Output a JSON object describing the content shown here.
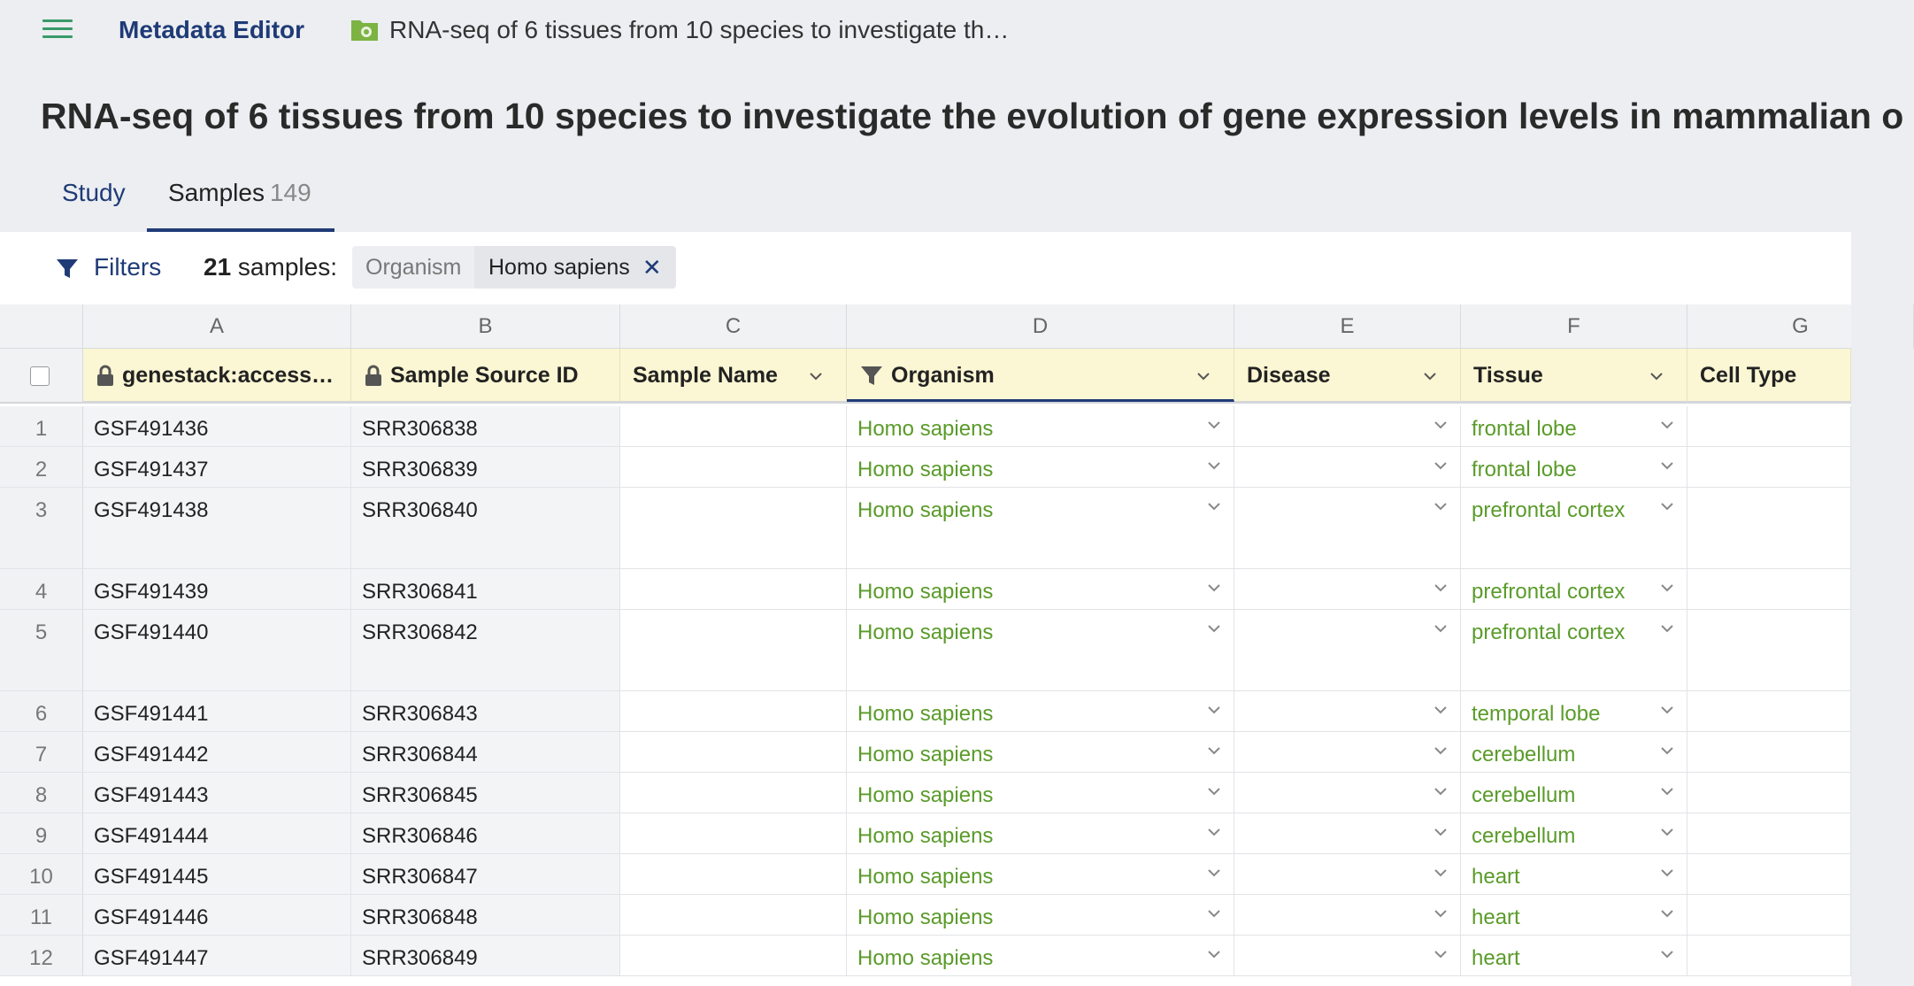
{
  "app": {
    "title": "Metadata Editor",
    "breadcrumb": "RNA-seq of 6 tissues from 10 species to investigate th…"
  },
  "page_title": "RNA-seq of 6 tissues from 10 species to investigate the evolution of gene expression levels in mammalian o",
  "tabs": [
    {
      "label": "Study"
    },
    {
      "label": "Samples",
      "count": "149"
    }
  ],
  "filterbar": {
    "filters_label": "Filters",
    "count": "21",
    "count_suffix": " samples:",
    "chip_key": "Organism",
    "chip_value": "Homo sapiens",
    "chip_close": "✕"
  },
  "columns": {
    "letters": [
      "A",
      "B",
      "C",
      "D",
      "E",
      "F",
      "G"
    ],
    "headers": [
      "genestack:access…",
      "Sample Source ID",
      "Sample Name",
      "Organism",
      "Disease",
      "Tissue",
      "Cell Type"
    ]
  },
  "rows": [
    {
      "n": "1",
      "acc": "GSF491436",
      "src": "SRR306838",
      "org": "Homo sapiens",
      "tissue": "frontal lobe"
    },
    {
      "n": "2",
      "acc": "GSF491437",
      "src": "SRR306839",
      "org": "Homo sapiens",
      "tissue": "frontal lobe"
    },
    {
      "n": "3",
      "acc": "GSF491438",
      "src": "SRR306840",
      "org": "Homo sapiens",
      "tissue": "prefrontal cortex"
    },
    {
      "n": "4",
      "acc": "GSF491439",
      "src": "SRR306841",
      "org": "Homo sapiens",
      "tissue": "prefrontal cortex"
    },
    {
      "n": "5",
      "acc": "GSF491440",
      "src": "SRR306842",
      "org": "Homo sapiens",
      "tissue": "prefrontal cortex"
    },
    {
      "n": "6",
      "acc": "GSF491441",
      "src": "SRR306843",
      "org": "Homo sapiens",
      "tissue": "temporal lobe"
    },
    {
      "n": "7",
      "acc": "GSF491442",
      "src": "SRR306844",
      "org": "Homo sapiens",
      "tissue": "cerebellum"
    },
    {
      "n": "8",
      "acc": "GSF491443",
      "src": "SRR306845",
      "org": "Homo sapiens",
      "tissue": "cerebellum"
    },
    {
      "n": "9",
      "acc": "GSF491444",
      "src": "SRR306846",
      "org": "Homo sapiens",
      "tissue": "cerebellum"
    },
    {
      "n": "10",
      "acc": "GSF491445",
      "src": "SRR306847",
      "org": "Homo sapiens",
      "tissue": "heart"
    },
    {
      "n": "11",
      "acc": "GSF491446",
      "src": "SRR306848",
      "org": "Homo sapiens",
      "tissue": "heart"
    },
    {
      "n": "12",
      "acc": "GSF491447",
      "src": "SRR306849",
      "org": "Homo sapiens",
      "tissue": "heart"
    }
  ],
  "colors": {
    "accent": "#1f3b77",
    "value_green": "#5a9b2a",
    "header_bg": "#fbf6d3"
  }
}
